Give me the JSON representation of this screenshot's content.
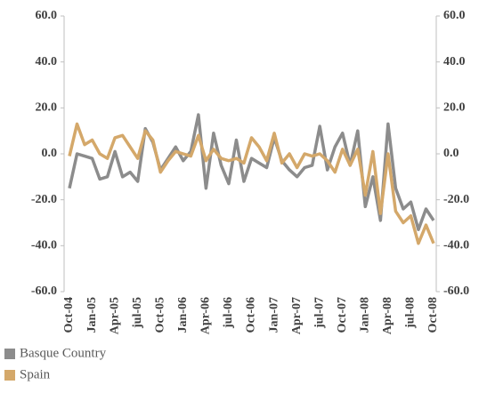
{
  "chart_data": {
    "type": "line",
    "categories": [
      "Oct-04",
      null,
      null,
      "Jan-05",
      null,
      null,
      "Apr-05",
      null,
      null,
      "jul-05",
      null,
      null,
      "Oct-05",
      null,
      null,
      "Jan-06",
      null,
      null,
      "Apr-06",
      null,
      null,
      "jul-06",
      null,
      null,
      "Oct-06",
      null,
      null,
      "Jan-07",
      null,
      null,
      "Apr-07",
      null,
      null,
      "jul-07",
      null,
      null,
      "Oct-07",
      null,
      null,
      "Jan-08",
      null,
      null,
      "Apr-08",
      null,
      null,
      "jul-08",
      null,
      null,
      "Oct-08"
    ],
    "series": [
      {
        "name": "Basque Country",
        "color": "#8c8c8c",
        "values": [
          -15,
          0,
          -1,
          -2,
          -11,
          -10,
          1,
          -10,
          -8,
          -12,
          11,
          5,
          -7,
          -2,
          3,
          -3,
          1,
          17,
          -15,
          9,
          -5,
          -13,
          6,
          -12,
          -2,
          -4,
          -6,
          7,
          -3,
          -7,
          -10,
          -6,
          -5,
          12,
          -7,
          3,
          9,
          -5,
          10,
          -23,
          -10,
          -29,
          13,
          -15,
          -24,
          -21,
          -33,
          -24,
          -29
        ]
      },
      {
        "name": "Spain",
        "color": "#d4a86a",
        "values": [
          -1,
          13,
          4,
          6,
          0,
          -2,
          7,
          8,
          3,
          -2,
          10,
          6,
          -8,
          -3,
          1,
          0,
          -1,
          8,
          -3,
          2,
          -2,
          -3,
          -2,
          -4,
          7,
          3,
          -3,
          9,
          -4,
          0,
          -6,
          0,
          -1,
          0,
          -3,
          -8,
          2,
          -5,
          2,
          -18,
          1,
          -26,
          0,
          -25,
          -30,
          -27,
          -39,
          -31,
          -39
        ]
      }
    ],
    "ylim": [
      -60,
      60
    ],
    "yticks": [
      {
        "value": -60,
        "label": "-60.0"
      },
      {
        "value": -40,
        "label": "-40.0"
      },
      {
        "value": -20,
        "label": "-20.0"
      },
      {
        "value": 0,
        "label": "0.0"
      },
      {
        "value": 20,
        "label": "20.0"
      },
      {
        "value": 40,
        "label": "40.0"
      },
      {
        "value": 60,
        "label": "60.0"
      }
    ],
    "y2lim": [
      -60,
      60
    ],
    "y2ticks": [
      {
        "value": -60,
        "label": "-60.0"
      },
      {
        "value": -40,
        "label": "-40.0"
      },
      {
        "value": -20,
        "label": "-20.0"
      },
      {
        "value": 0,
        "label": "0.0"
      },
      {
        "value": 20,
        "label": "20.0"
      },
      {
        "value": 40,
        "label": "40.0"
      },
      {
        "value": 60,
        "label": "60.0"
      }
    ],
    "grid": false,
    "legend": "bottom-left"
  }
}
